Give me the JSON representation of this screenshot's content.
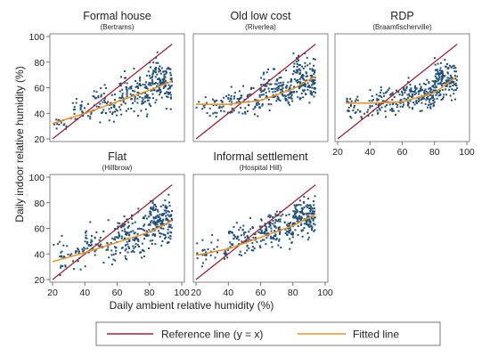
{
  "figure": {
    "y_axis_label": "Daily indoor relative humidity (%)",
    "x_axis_label": "Daily ambient relative humidity (%)",
    "legend": {
      "reference_label": "Reference line (y = x)",
      "fitted_label": "Fitted line"
    }
  },
  "colors": {
    "points": "#1f4e79",
    "reference": "#9b2335",
    "fitted": "#e8942a",
    "plot_border": "#666666",
    "background": "#ffffff"
  },
  "chart_data": [
    {
      "type": "scatter",
      "title": "Formal house",
      "subtitle": "(Bertrams)",
      "xlim": [
        20,
        100
      ],
      "ylim": [
        20,
        100
      ],
      "x_ticks": [],
      "y_ticks": [
        20,
        40,
        60,
        80,
        100
      ],
      "reference_line": [
        [
          20,
          20
        ],
        [
          94,
          94
        ]
      ],
      "fitted_line": [
        [
          20,
          32
        ],
        [
          40,
          40
        ],
        [
          60,
          49
        ],
        [
          80,
          58
        ],
        [
          94,
          65
        ]
      ],
      "scatter_profile": [
        {
          "x": [
            20,
            30
          ],
          "y_center": 32,
          "y_spread": 5,
          "n": 15
        },
        {
          "x": [
            30,
            45
          ],
          "y_center": 42,
          "y_spread": 8,
          "n": 30
        },
        {
          "x": [
            45,
            62
          ],
          "y_center": 48,
          "y_spread": 13,
          "n": 60
        },
        {
          "x": [
            62,
            80
          ],
          "y_center": 56,
          "y_spread": 16,
          "n": 110
        },
        {
          "x": [
            80,
            94
          ],
          "y_center": 65,
          "y_spread": 17,
          "n": 140
        }
      ]
    },
    {
      "type": "scatter",
      "title": "Old low cost",
      "subtitle": "(Riverlea)",
      "xlim": [
        20,
        100
      ],
      "ylim": [
        20,
        100
      ],
      "x_ticks": [],
      "y_ticks": [],
      "reference_line": [
        [
          20,
          20
        ],
        [
          94,
          94
        ]
      ],
      "fitted_line": [
        [
          20,
          47
        ],
        [
          40,
          47
        ],
        [
          60,
          50
        ],
        [
          80,
          59
        ],
        [
          94,
          69
        ]
      ],
      "scatter_profile": [
        {
          "x": [
            20,
            40
          ],
          "y_center": 46,
          "y_spread": 8,
          "n": 35
        },
        {
          "x": [
            40,
            60
          ],
          "y_center": 49,
          "y_spread": 11,
          "n": 70
        },
        {
          "x": [
            60,
            80
          ],
          "y_center": 57,
          "y_spread": 14,
          "n": 130
        },
        {
          "x": [
            80,
            94
          ],
          "y_center": 67,
          "y_spread": 16,
          "n": 150
        }
      ]
    },
    {
      "type": "scatter",
      "title": "RDP",
      "subtitle": "(Braamfischerville)",
      "xlim": [
        20,
        100
      ],
      "ylim": [
        20,
        100
      ],
      "x_ticks": [
        20,
        40,
        60,
        80,
        100
      ],
      "y_ticks": [],
      "reference_line": [
        [
          20,
          20
        ],
        [
          94,
          94
        ]
      ],
      "fitted_line": [
        [
          25,
          48
        ],
        [
          40,
          48
        ],
        [
          60,
          49
        ],
        [
          80,
          56
        ],
        [
          94,
          69
        ]
      ],
      "scatter_profile": [
        {
          "x": [
            25,
            40
          ],
          "y_center": 45,
          "y_spread": 9,
          "n": 35
        },
        {
          "x": [
            40,
            60
          ],
          "y_center": 49,
          "y_spread": 10,
          "n": 80
        },
        {
          "x": [
            60,
            80
          ],
          "y_center": 55,
          "y_spread": 13,
          "n": 140
        },
        {
          "x": [
            80,
            94
          ],
          "y_center": 66,
          "y_spread": 15,
          "n": 150
        }
      ]
    },
    {
      "type": "scatter",
      "title": "Flat",
      "subtitle": "(Hillbrow)",
      "xlim": [
        20,
        100
      ],
      "ylim": [
        20,
        100
      ],
      "x_ticks": [
        20,
        40,
        60,
        80,
        100
      ],
      "y_ticks": [
        20,
        40,
        60,
        80,
        100
      ],
      "reference_line": [
        [
          20,
          20
        ],
        [
          94,
          94
        ]
      ],
      "fitted_line": [
        [
          20,
          34
        ],
        [
          40,
          41
        ],
        [
          60,
          49
        ],
        [
          80,
          57
        ],
        [
          94,
          66
        ]
      ],
      "scatter_profile": [
        {
          "x": [
            20,
            40
          ],
          "y_center": 38,
          "y_spread": 11,
          "n": 40
        },
        {
          "x": [
            40,
            60
          ],
          "y_center": 47,
          "y_spread": 14,
          "n": 70
        },
        {
          "x": [
            60,
            80
          ],
          "y_center": 56,
          "y_spread": 16,
          "n": 130
        },
        {
          "x": [
            80,
            94
          ],
          "y_center": 64,
          "y_spread": 18,
          "n": 160
        }
      ]
    },
    {
      "type": "scatter",
      "title": "Informal settlement",
      "subtitle": "(Hospital Hill)",
      "xlim": [
        20,
        100
      ],
      "ylim": [
        20,
        100
      ],
      "x_ticks": [
        20,
        40,
        60,
        80,
        100
      ],
      "y_ticks": [],
      "reference_line": [
        [
          20,
          20
        ],
        [
          94,
          94
        ]
      ],
      "fitted_line": [
        [
          20,
          39
        ],
        [
          40,
          44
        ],
        [
          60,
          53
        ],
        [
          80,
          62
        ],
        [
          94,
          71
        ]
      ],
      "scatter_profile": [
        {
          "x": [
            20,
            40
          ],
          "y_center": 42,
          "y_spread": 9,
          "n": 35
        },
        {
          "x": [
            40,
            60
          ],
          "y_center": 51,
          "y_spread": 12,
          "n": 75
        },
        {
          "x": [
            60,
            80
          ],
          "y_center": 60,
          "y_spread": 13,
          "n": 130
        },
        {
          "x": [
            80,
            94
          ],
          "y_center": 69,
          "y_spread": 14,
          "n": 150
        }
      ]
    }
  ]
}
